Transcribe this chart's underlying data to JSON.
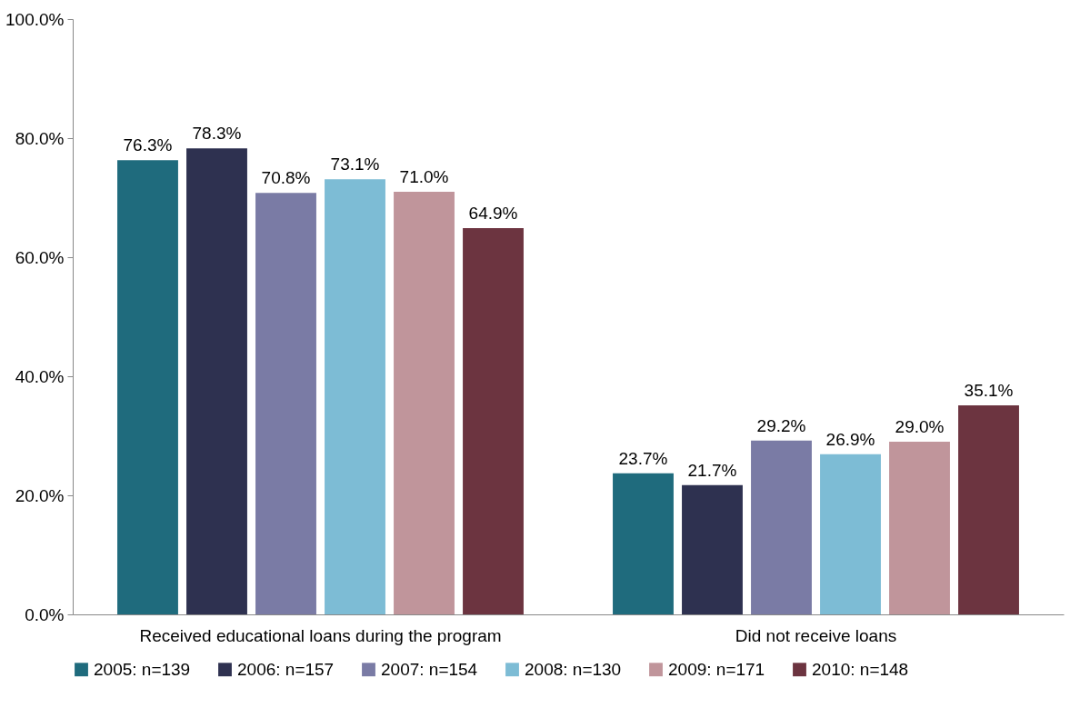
{
  "chart_data": {
    "type": "bar",
    "categories": [
      "Received educational loans during the program",
      "Did not receive loans"
    ],
    "series": [
      {
        "name": "2005: n=139",
        "color": "#1f6b7d",
        "values": [
          76.3,
          23.7
        ],
        "value_labels": [
          "76.3%",
          "23.7%"
        ]
      },
      {
        "name": "2006: n=157",
        "color": "#2e3150",
        "values": [
          78.3,
          21.7
        ],
        "value_labels": [
          "78.3%",
          "21.7%"
        ]
      },
      {
        "name": "2007: n=154",
        "color": "#7a7ba5",
        "values": [
          70.8,
          29.2
        ],
        "value_labels": [
          "70.8%",
          "29.2%"
        ]
      },
      {
        "name": "2008: n=130",
        "color": "#7dbcd5",
        "values": [
          73.1,
          26.9
        ],
        "value_labels": [
          "73.1%",
          "26.9%"
        ]
      },
      {
        "name": "2009: n=171",
        "color": "#c0959b",
        "values": [
          71.0,
          29.0
        ],
        "value_labels": [
          "71.0%",
          "29.0%"
        ]
      },
      {
        "name": "2010: n=148",
        "color": "#6c3440",
        "values": [
          64.9,
          35.1
        ],
        "value_labels": [
          "64.9%",
          "35.1%"
        ]
      }
    ],
    "ylim": [
      0,
      100
    ],
    "yticks": [
      {
        "value": 0,
        "label": "0.0%"
      },
      {
        "value": 20,
        "label": "20.0%"
      },
      {
        "value": 40,
        "label": "40.0%"
      },
      {
        "value": 60,
        "label": "60.0%"
      },
      {
        "value": 80,
        "label": "80.0%"
      },
      {
        "value": 100,
        "label": "100.0%"
      }
    ],
    "grid": false,
    "legend": "bottom"
  }
}
